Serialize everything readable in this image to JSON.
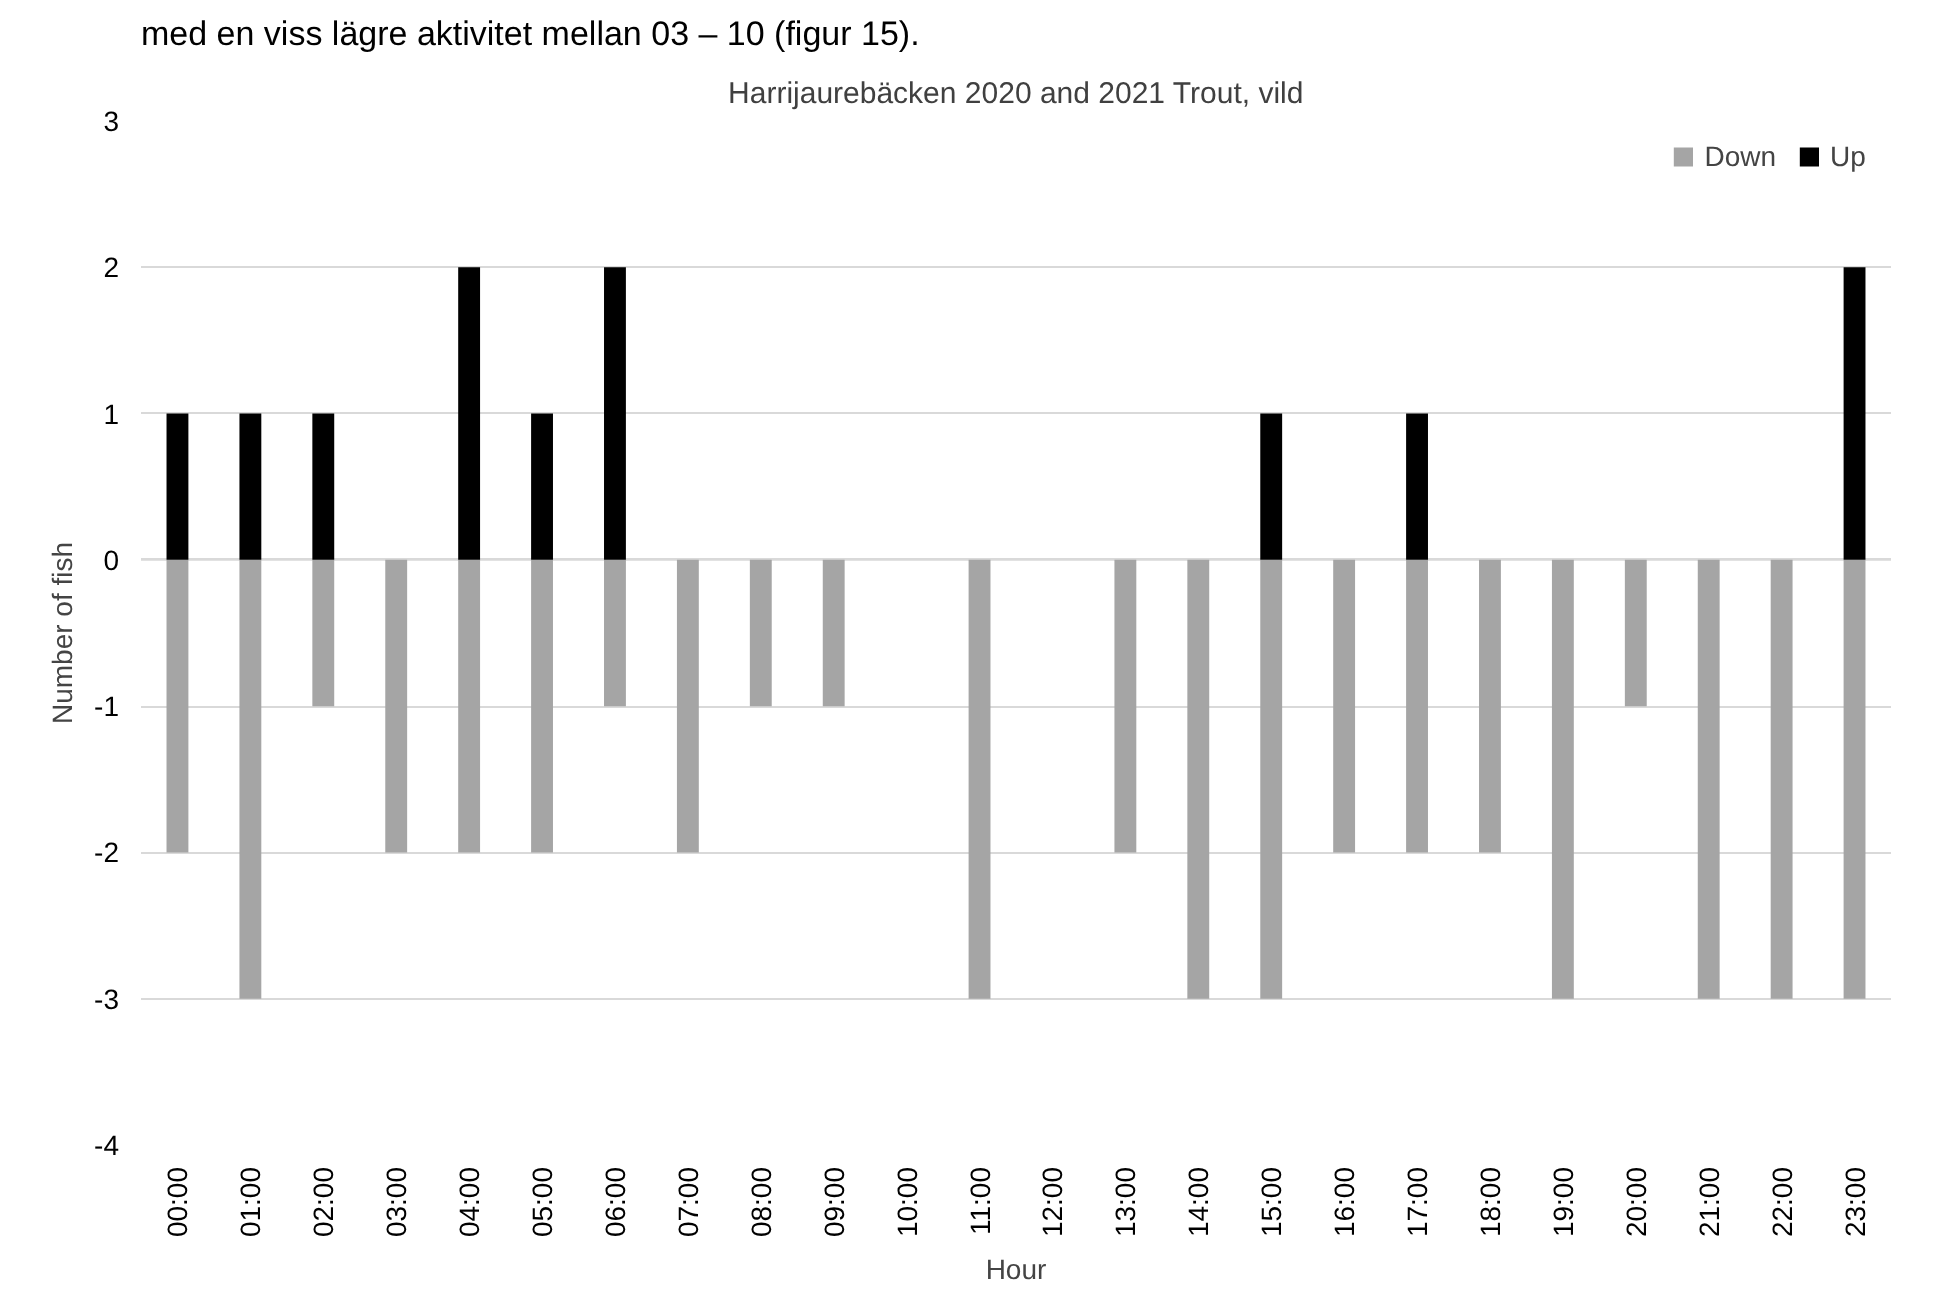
{
  "chart_data": {
    "type": "bar",
    "title": "Harrijaurebäcken 2020 and 2021 Trout, vild",
    "xlabel": "Hour",
    "ylabel": "Number of fish",
    "annotations": [
      "med en viss lägre aktivitet mellan 03 – 10 (figur 15)."
    ],
    "categories": [
      "00:00",
      "01:00",
      "02:00",
      "03:00",
      "04:00",
      "05:00",
      "06:00",
      "07:00",
      "08:00",
      "09:00",
      "10:00",
      "11:00",
      "12:00",
      "13:00",
      "14:00",
      "15:00",
      "16:00",
      "17:00",
      "18:00",
      "19:00",
      "20:00",
      "21:00",
      "22:00",
      "23:00"
    ],
    "series": [
      {
        "name": "Down",
        "color": "#a5a5a5",
        "values": [
          -2,
          -3,
          -1,
          -2,
          -2,
          -2,
          -1,
          -2,
          -1,
          -1,
          0,
          -3,
          0,
          -2,
          -3,
          -3,
          -2,
          -2,
          -2,
          -3,
          -1,
          -3,
          -3,
          -3
        ]
      },
      {
        "name": "Up",
        "color": "#000000",
        "values": [
          1,
          1,
          1,
          0,
          2,
          1,
          2,
          0,
          0,
          0,
          0,
          0,
          0,
          0,
          0,
          1,
          0,
          1,
          0,
          0,
          0,
          0,
          0,
          2
        ]
      }
    ],
    "ylim": [
      -4,
      3
    ],
    "yticks": [
      -4,
      -3,
      -2,
      -1,
      0,
      1,
      2,
      3
    ],
    "grid": "y",
    "legend": "top right"
  }
}
